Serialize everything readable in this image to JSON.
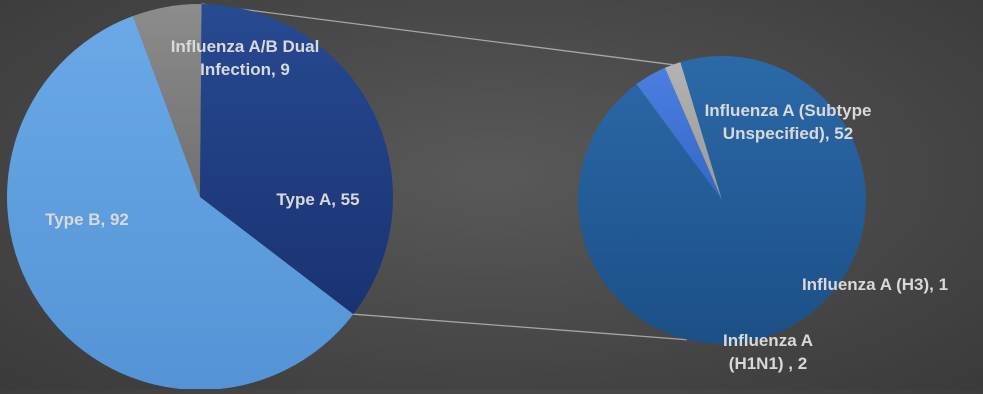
{
  "chart_data": {
    "type": "pie",
    "subtype": "pie-of-pie",
    "colors": {
      "type_b": "#5f9edd",
      "type_a": "#1f3a7a",
      "dual": "#7f7f7f",
      "subtype_unspecified": "#235a93",
      "h1n1": "#3d6fd0",
      "h3": "#a6a6a6",
      "connector": "#a6a6a6"
    },
    "main_pie": {
      "slices": [
        {
          "key": "dual",
          "category": "Influenza A/B Dual Infection",
          "value": 9,
          "label_lines": [
            "Influenza A/B Dual",
            "Infection, 9"
          ]
        },
        {
          "key": "type_a",
          "category": "Type A",
          "value": 55,
          "label_lines": [
            "Type A, 55"
          ]
        },
        {
          "key": "type_b",
          "category": "Type B",
          "value": 92,
          "label_lines": [
            "Type B, 92"
          ]
        }
      ]
    },
    "secondary_pie": {
      "expands": "Type A",
      "slices": [
        {
          "key": "subtype_unspecified",
          "category": "Influenza A (Subtype Unspecified)",
          "value": 52,
          "label_lines": [
            "Influenza A (Subtype",
            "Unspecified), 52"
          ]
        },
        {
          "key": "h1n1",
          "category": "Influenza A (H1N1)",
          "value": 2,
          "label_lines": [
            "Influenza A",
            "(H1N1) , 2"
          ]
        },
        {
          "key": "h3",
          "category": "Influenza A (H3)",
          "value": 1,
          "label_lines": [
            "Influenza A (H3), 1"
          ]
        }
      ]
    }
  }
}
